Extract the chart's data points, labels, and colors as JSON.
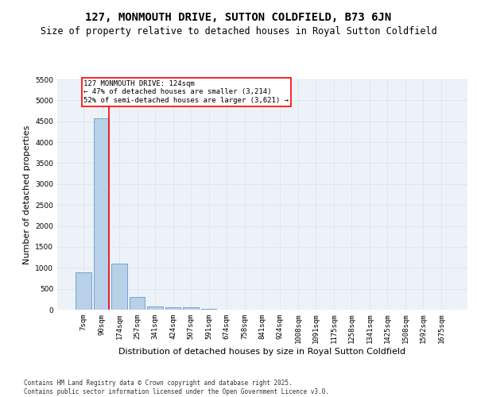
{
  "title": "127, MONMOUTH DRIVE, SUTTON COLDFIELD, B73 6JN",
  "subtitle": "Size of property relative to detached houses in Royal Sutton Coldfield",
  "xlabel": "Distribution of detached houses by size in Royal Sutton Coldfield",
  "ylabel": "Number of detached properties",
  "categories": [
    "7sqm",
    "90sqm",
    "174sqm",
    "257sqm",
    "341sqm",
    "424sqm",
    "507sqm",
    "591sqm",
    "674sqm",
    "758sqm",
    "841sqm",
    "924sqm",
    "1008sqm",
    "1091sqm",
    "1175sqm",
    "1258sqm",
    "1341sqm",
    "1425sqm",
    "1508sqm",
    "1592sqm",
    "1675sqm"
  ],
  "values": [
    900,
    4580,
    1100,
    300,
    80,
    60,
    50,
    10,
    5,
    5,
    5,
    5,
    3,
    3,
    3,
    3,
    3,
    3,
    3,
    3,
    3
  ],
  "bar_color": "#b8d0e8",
  "bar_edge_color": "#6699cc",
  "vline_color": "red",
  "annotation_text": "127 MONMOUTH DRIVE: 124sqm\n← 47% of detached houses are smaller (3,214)\n52% of semi-detached houses are larger (3,621) →",
  "annotation_box_color": "white",
  "annotation_box_edge_color": "red",
  "ylim": [
    0,
    5500
  ],
  "yticks": [
    0,
    500,
    1000,
    1500,
    2000,
    2500,
    3000,
    3500,
    4000,
    4500,
    5000,
    5500
  ],
  "grid_color": "#dce8f0",
  "bg_color": "#edf2f8",
  "title_fontsize": 10,
  "subtitle_fontsize": 8.5,
  "axis_label_fontsize": 8,
  "tick_fontsize": 6.5,
  "footer_text": "Contains HM Land Registry data © Crown copyright and database right 2025.\nContains public sector information licensed under the Open Government Licence v3.0."
}
